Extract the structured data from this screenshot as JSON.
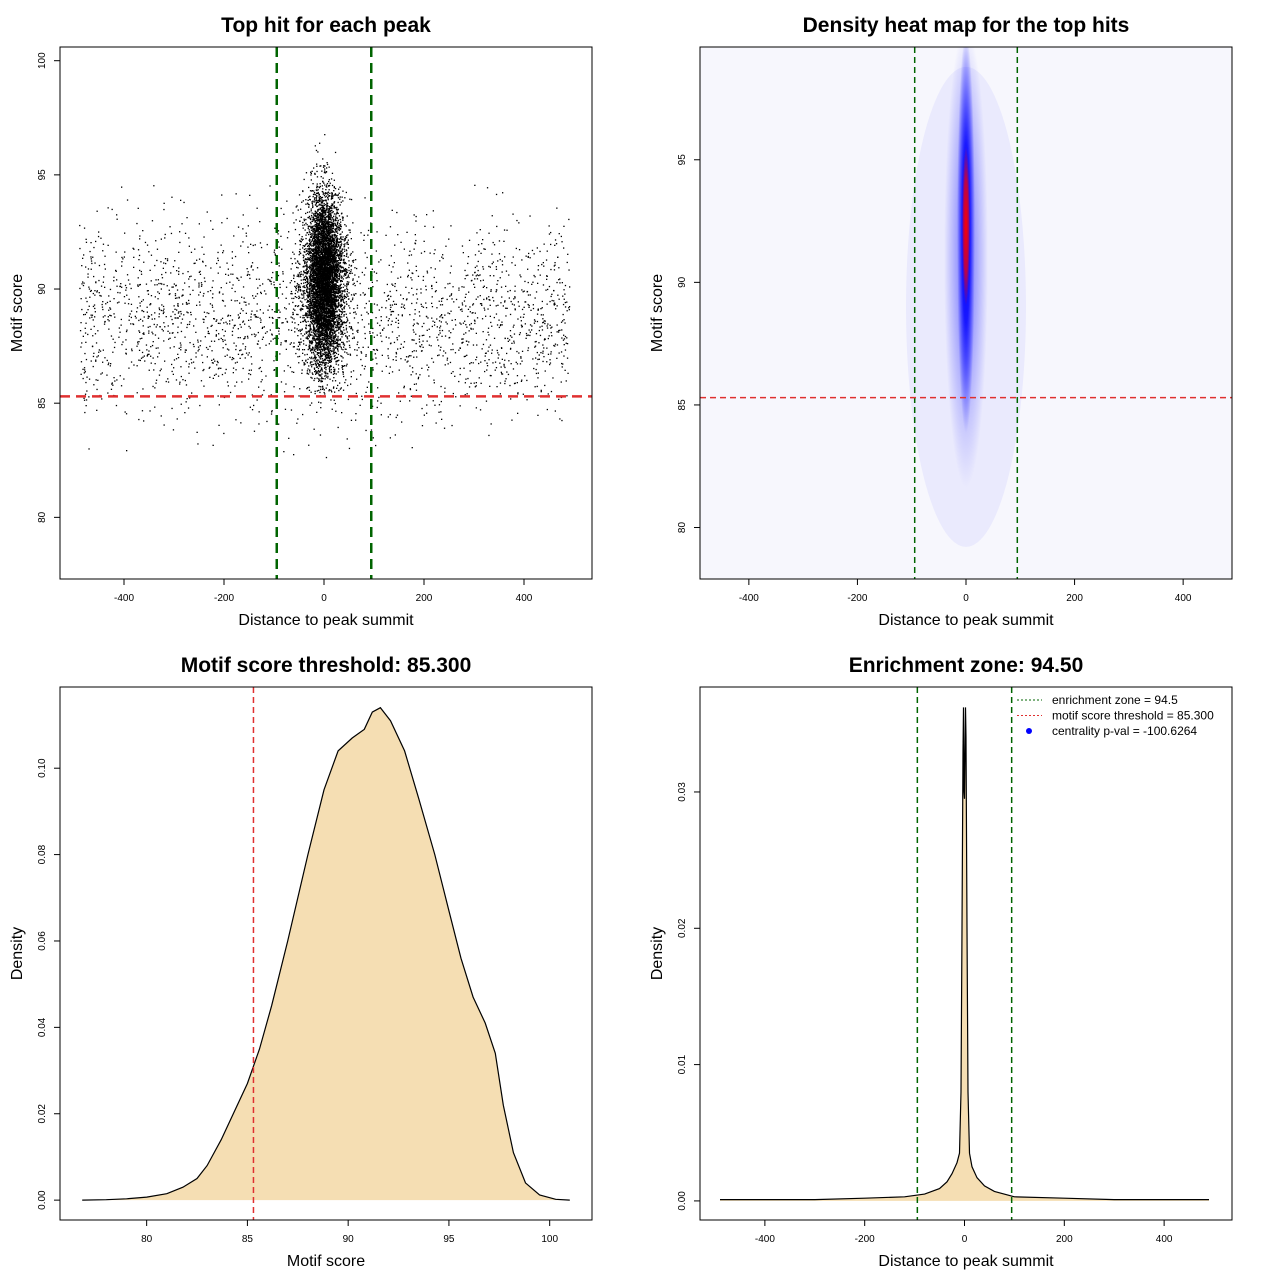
{
  "chart_data": [
    {
      "type": "scatter",
      "title": "Top hit for each peak",
      "xlabel": "Distance to peak summit",
      "ylabel": "Motif score",
      "xlim": [
        -528,
        536
      ],
      "ylim": [
        77.3,
        100.6
      ],
      "xticks": [
        -400,
        -200,
        0,
        200,
        400
      ],
      "yticks": [
        80,
        85,
        90,
        95,
        100
      ],
      "vlines": [
        -94.5,
        94.5
      ],
      "hline": 85.3,
      "vline_color": "#006400",
      "hline_color": "#e03030"
    },
    {
      "type": "heatmap",
      "title": "Density heat map for the top hits",
      "xlabel": "Distance to peak summit",
      "ylabel": "Motif score",
      "xlim": [
        -490,
        490
      ],
      "ylim": [
        77.9,
        99.6
      ],
      "xticks": [
        -400,
        -200,
        0,
        200,
        400
      ],
      "yticks": [
        80,
        85,
        90,
        95
      ],
      "vlines": [
        -94.5,
        94.5
      ],
      "hline": 85.3,
      "colors": [
        "#ffffff",
        "#0000ff",
        "#ff0000"
      ]
    },
    {
      "type": "area",
      "title": "Motif score threshold: 85.300",
      "xlabel": "Motif score",
      "ylabel": "Density",
      "xlim": [
        75.7,
        102.1
      ],
      "ylim": [
        -0.0046,
        0.1188
      ],
      "xticks": [
        80,
        85,
        90,
        95,
        100
      ],
      "yticks": [
        0.0,
        0.02,
        0.04,
        0.06,
        0.08,
        0.1
      ],
      "ytick_labels": [
        "0.00",
        "0.02",
        "0.04",
        "0.06",
        "0.08",
        "0.10"
      ],
      "vline": 85.3,
      "fill": "#f5deb3",
      "x": [
        76.8,
        78,
        79,
        80,
        81,
        81.8,
        82.5,
        83,
        83.7,
        84.3,
        85,
        85.6,
        86.2,
        87,
        88,
        88.8,
        89.5,
        90.2,
        90.8,
        91.2,
        91.6,
        92.1,
        92.8,
        93.5,
        94.3,
        95,
        95.6,
        96.2,
        96.8,
        97.3,
        97.7,
        98.2,
        98.8,
        99.5,
        100.3,
        101
      ],
      "y": [
        0,
        0.0001,
        0.0003,
        0.0007,
        0.0015,
        0.003,
        0.005,
        0.008,
        0.014,
        0.02,
        0.027,
        0.035,
        0.045,
        0.06,
        0.08,
        0.095,
        0.104,
        0.107,
        0.109,
        0.113,
        0.114,
        0.111,
        0.104,
        0.093,
        0.08,
        0.067,
        0.056,
        0.047,
        0.041,
        0.034,
        0.022,
        0.011,
        0.004,
        0.0012,
        0.0002,
        0
      ]
    },
    {
      "type": "area",
      "title": "Enrichment zone: 94.50",
      "xlabel": "Distance to peak summit",
      "ylabel": "Density",
      "xlim": [
        -530,
        536
      ],
      "ylim": [
        -0.0014,
        0.0377
      ],
      "xticks": [
        -400,
        -200,
        0,
        200,
        400
      ],
      "yticks": [
        0.0,
        0.01,
        0.02,
        0.03
      ],
      "ytick_labels": [
        "0.00",
        "0.01",
        "0.02",
        "0.03"
      ],
      "vlines": [
        -94.5,
        94.5
      ],
      "fill": "#f5deb3",
      "x": [
        -490,
        -400,
        -300,
        -200,
        -120,
        -80,
        -50,
        -35,
        -25,
        -15,
        -10,
        -7,
        -5,
        -3,
        -2,
        -1,
        0,
        1,
        2,
        3,
        5,
        7,
        10,
        15,
        25,
        40,
        60,
        100,
        200,
        300,
        400,
        490
      ],
      "y": [
        0.0001,
        0.0001,
        0.0001,
        0.0002,
        0.0003,
        0.0005,
        0.0009,
        0.0014,
        0.002,
        0.0028,
        0.0035,
        0.008,
        0.02,
        0.033,
        0.0362,
        0.03,
        0.0295,
        0.033,
        0.0362,
        0.034,
        0.02,
        0.008,
        0.0035,
        0.0025,
        0.0017,
        0.0011,
        0.0007,
        0.0003,
        0.0002,
        0.0001,
        0.0001,
        0.0001
      ],
      "legend": {
        "position": "top-right",
        "entries": [
          {
            "label": "enrichment zone = 94.5",
            "color": "#006400",
            "style": "dotted-line"
          },
          {
            "label": "motif score threshold = 85.300",
            "color": "#e03030",
            "style": "dotted-line"
          },
          {
            "label": "centrality p-val = -100.6264",
            "color": "#0000ff",
            "style": "point"
          }
        ]
      }
    }
  ]
}
